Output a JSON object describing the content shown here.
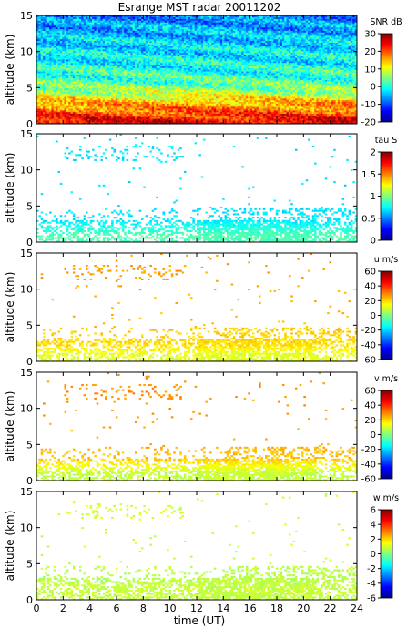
{
  "title": "Esrange MST radar 20011202",
  "xlabel": "time (UT)",
  "x_ticks": [
    0,
    2,
    4,
    6,
    8,
    10,
    12,
    14,
    16,
    18,
    20,
    22,
    24
  ],
  "y_ticks": [
    0,
    5,
    10,
    15
  ],
  "ylabel": "altitude (km)",
  "chart_data": [
    {
      "type": "heatmap",
      "name": "SNR",
      "title": "Esrange MST radar 20011202",
      "xlabel": "",
      "ylabel": "altitude (km)",
      "xlim": [
        0,
        24
      ],
      "ylim": [
        0,
        15
      ],
      "colorbar": {
        "label": "SNR dB",
        "range": [
          -20,
          30
        ],
        "ticks": [
          -20,
          -10,
          0,
          10,
          20,
          30
        ]
      },
      "coverage": "dense",
      "profile": [
        {
          "altitude_km": 1,
          "value": 26
        },
        {
          "altitude_km": 2,
          "value": 22
        },
        {
          "altitude_km": 3,
          "value": 18
        },
        {
          "altitude_km": 4,
          "value": 14
        },
        {
          "altitude_km": 5,
          "value": 8
        },
        {
          "altitude_km": 6,
          "value": 4
        },
        {
          "altitude_km": 8,
          "value": 0
        },
        {
          "altitude_km": 10,
          "value": -2
        },
        {
          "altitude_km": 12,
          "value": -4
        },
        {
          "altitude_km": 14,
          "value": -6
        },
        {
          "altitude_km": 15,
          "value": -8
        }
      ]
    },
    {
      "type": "heatmap",
      "name": "tau",
      "xlabel": "",
      "ylabel": "altitude (km)",
      "xlim": [
        0,
        24
      ],
      "ylim": [
        0,
        15
      ],
      "colorbar": {
        "label": "tau S",
        "range": [
          0,
          2
        ],
        "ticks": [
          0,
          0.5,
          1,
          1.5,
          2
        ]
      },
      "coverage": "sparse",
      "profile": [
        {
          "altitude_km": 2,
          "value": 0.9
        },
        {
          "altitude_km": 3,
          "value": 0.8
        },
        {
          "altitude_km": 4,
          "value": 0.7
        },
        {
          "altitude_km": 6,
          "value": 0.7
        },
        {
          "altitude_km": 12,
          "value": 0.7
        }
      ]
    },
    {
      "type": "heatmap",
      "name": "u",
      "xlabel": "",
      "ylabel": "altitude (km)",
      "xlim": [
        0,
        24
      ],
      "ylim": [
        0,
        15
      ],
      "colorbar": {
        "label": "u m/s",
        "range": [
          -60,
          60
        ],
        "ticks": [
          -60,
          -40,
          -20,
          0,
          20,
          40,
          60
        ]
      },
      "coverage": "sparse",
      "profile": [
        {
          "altitude_km": 2,
          "value": 12
        },
        {
          "altitude_km": 3,
          "value": 18
        },
        {
          "altitude_km": 4,
          "value": 20
        },
        {
          "altitude_km": 6,
          "value": 22
        },
        {
          "altitude_km": 12,
          "value": 26
        }
      ]
    },
    {
      "type": "heatmap",
      "name": "v",
      "xlabel": "",
      "ylabel": "altitude (km)",
      "xlim": [
        0,
        24
      ],
      "ylim": [
        0,
        15
      ],
      "colorbar": {
        "label": "v m/s",
        "range": [
          -60,
          60
        ],
        "ticks": [
          -60,
          -40,
          -20,
          0,
          20,
          40,
          60
        ]
      },
      "coverage": "sparse",
      "profile": [
        {
          "altitude_km": 2,
          "value": 8
        },
        {
          "altitude_km": 3,
          "value": 14
        },
        {
          "altitude_km": 4,
          "value": 22
        },
        {
          "altitude_km": 6,
          "value": 24
        },
        {
          "altitude_km": 12,
          "value": 28
        }
      ]
    },
    {
      "type": "heatmap",
      "name": "w",
      "xlabel": "time (UT)",
      "ylabel": "altitude (km)",
      "xlim": [
        0,
        24
      ],
      "ylim": [
        0,
        15
      ],
      "colorbar": {
        "label": "w m/s",
        "range": [
          -6,
          6
        ],
        "ticks": [
          -6,
          -4,
          -2,
          0,
          2,
          4,
          6
        ]
      },
      "coverage": "sparse",
      "profile": [
        {
          "altitude_km": 2,
          "value": 0.8
        },
        {
          "altitude_km": 3,
          "value": 0.8
        },
        {
          "altitude_km": 4,
          "value": 0.6
        },
        {
          "altitude_km": 6,
          "value": 0.8
        },
        {
          "altitude_km": 12,
          "value": 1.0
        }
      ]
    }
  ],
  "colors": {
    "axes": "#000000",
    "background": "#ffffff"
  }
}
